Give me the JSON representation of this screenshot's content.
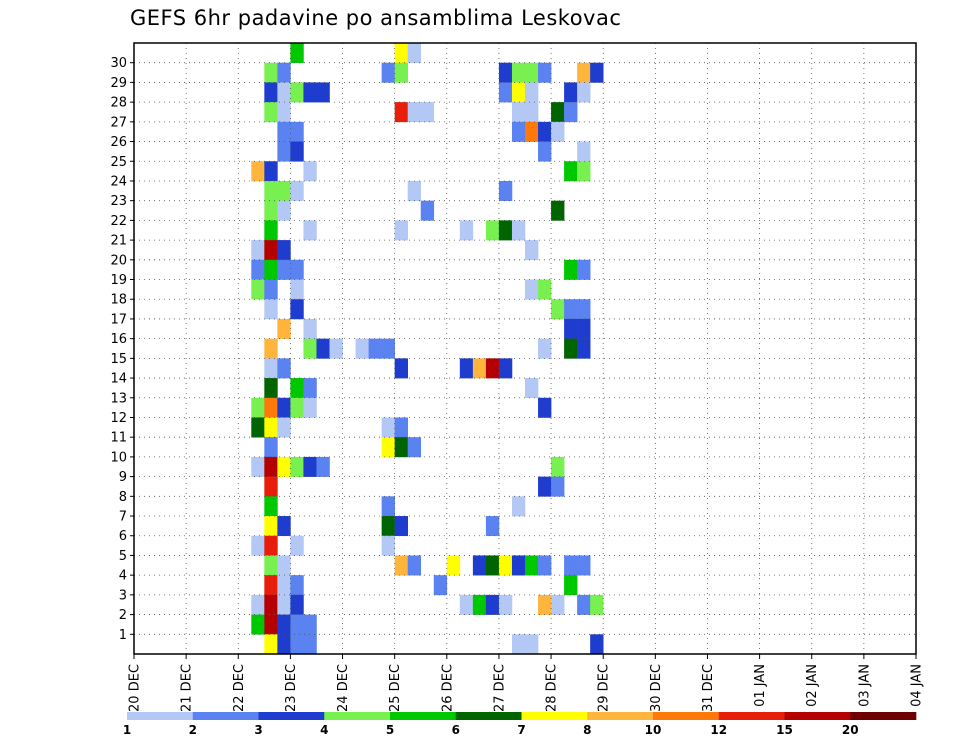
{
  "chart_data": {
    "type": "heatmap",
    "title": "GEFS 6hr padavine po ansamblima Leskovac",
    "xlabel": "",
    "ylabel": "",
    "x_tick_labels": [
      "20 DEC",
      "21 DEC",
      "22 DEC",
      "23 DEC",
      "24 DEC",
      "25 DEC",
      "26 DEC",
      "27 DEC",
      "28 DEC",
      "29 DEC",
      "30 DEC",
      "31 DEC",
      "01 JAN",
      "02 JAN",
      "03 JAN",
      "04 JAN"
    ],
    "x_start": "2015-12-20 00Z",
    "x_step_hours": 6,
    "y_tick_labels": [
      "1",
      "2",
      "3",
      "4",
      "5",
      "6",
      "7",
      "8",
      "9",
      "10",
      "11",
      "12",
      "13",
      "14",
      "15",
      "16",
      "17",
      "18",
      "19",
      "20",
      "21",
      "22",
      "23",
      "24",
      "25",
      "26",
      "27",
      "28",
      "29",
      "30"
    ],
    "ylim": [
      0,
      30
    ],
    "grid": true,
    "legend": {
      "position": "bottom",
      "labels": [
        "1",
        "2",
        "3",
        "4",
        "5",
        "6",
        "7",
        "8",
        "10",
        "12",
        "15",
        "20"
      ],
      "colors": [
        "#b4c8f5",
        "#5a82f0",
        "#1e3ccd",
        "#78f050",
        "#00c800",
        "#006400",
        "#ffff00",
        "#ffb43c",
        "#ff780a",
        "#e61e0a",
        "#b40000",
        "#6e0000"
      ]
    },
    "cells": [
      {
        "x": 12,
        "y": 31,
        "v": 5
      },
      {
        "x": 20,
        "y": 31,
        "v": 7
      },
      {
        "x": 21,
        "y": 31,
        "v": 1
      },
      {
        "x": 10,
        "y": 30,
        "v": 4
      },
      {
        "x": 11,
        "y": 30,
        "v": 2
      },
      {
        "x": 19,
        "y": 30,
        "v": 2
      },
      {
        "x": 20,
        "y": 30,
        "v": 4
      },
      {
        "x": 28,
        "y": 30,
        "v": 3
      },
      {
        "x": 29,
        "y": 30,
        "v": 4
      },
      {
        "x": 30,
        "y": 30,
        "v": 4
      },
      {
        "x": 31,
        "y": 30,
        "v": 2
      },
      {
        "x": 34,
        "y": 30,
        "v": 8
      },
      {
        "x": 35,
        "y": 30,
        "v": 3
      },
      {
        "x": 10,
        "y": 29,
        "v": 3
      },
      {
        "x": 11,
        "y": 29,
        "v": 1
      },
      {
        "x": 12,
        "y": 29,
        "v": 4
      },
      {
        "x": 13,
        "y": 29,
        "v": 3
      },
      {
        "x": 14,
        "y": 29,
        "v": 3
      },
      {
        "x": 28,
        "y": 29,
        "v": 2
      },
      {
        "x": 29,
        "y": 29,
        "v": 7
      },
      {
        "x": 30,
        "y": 29,
        "v": 1
      },
      {
        "x": 33,
        "y": 29,
        "v": 3
      },
      {
        "x": 34,
        "y": 29,
        "v": 1
      },
      {
        "x": 10,
        "y": 28,
        "v": 4
      },
      {
        "x": 11,
        "y": 28,
        "v": 1
      },
      {
        "x": 20,
        "y": 28,
        "v": 12
      },
      {
        "x": 21,
        "y": 28,
        "v": 1
      },
      {
        "x": 22,
        "y": 28,
        "v": 1
      },
      {
        "x": 29,
        "y": 28,
        "v": 1
      },
      {
        "x": 30,
        "y": 28,
        "v": 1
      },
      {
        "x": 32,
        "y": 28,
        "v": 6
      },
      {
        "x": 33,
        "y": 28,
        "v": 2
      },
      {
        "x": 11,
        "y": 27,
        "v": 2
      },
      {
        "x": 12,
        "y": 27,
        "v": 2
      },
      {
        "x": 29,
        "y": 27,
        "v": 2
      },
      {
        "x": 30,
        "y": 27,
        "v": 10
      },
      {
        "x": 31,
        "y": 27,
        "v": 3
      },
      {
        "x": 32,
        "y": 27,
        "v": 1
      },
      {
        "x": 11,
        "y": 26,
        "v": 2
      },
      {
        "x": 12,
        "y": 26,
        "v": 3
      },
      {
        "x": 31,
        "y": 26,
        "v": 2
      },
      {
        "x": 34,
        "y": 26,
        "v": 1
      },
      {
        "x": 9,
        "y": 25,
        "v": 8
      },
      {
        "x": 10,
        "y": 25,
        "v": 3
      },
      {
        "x": 13,
        "y": 25,
        "v": 1
      },
      {
        "x": 33,
        "y": 25,
        "v": 5
      },
      {
        "x": 34,
        "y": 25,
        "v": 4
      },
      {
        "x": 10,
        "y": 24,
        "v": 4
      },
      {
        "x": 11,
        "y": 24,
        "v": 4
      },
      {
        "x": 12,
        "y": 24,
        "v": 1
      },
      {
        "x": 21,
        "y": 24,
        "v": 1
      },
      {
        "x": 28,
        "y": 24,
        "v": 2
      },
      {
        "x": 10,
        "y": 23,
        "v": 4
      },
      {
        "x": 11,
        "y": 23,
        "v": 1
      },
      {
        "x": 22,
        "y": 23,
        "v": 2
      },
      {
        "x": 32,
        "y": 23,
        "v": 6
      },
      {
        "x": 10,
        "y": 22,
        "v": 5
      },
      {
        "x": 13,
        "y": 22,
        "v": 1
      },
      {
        "x": 20,
        "y": 22,
        "v": 1
      },
      {
        "x": 25,
        "y": 22,
        "v": 1
      },
      {
        "x": 27,
        "y": 22,
        "v": 4
      },
      {
        "x": 28,
        "y": 22,
        "v": 6
      },
      {
        "x": 29,
        "y": 22,
        "v": 1
      },
      {
        "x": 9,
        "y": 21,
        "v": 1
      },
      {
        "x": 10,
        "y": 21,
        "v": 15
      },
      {
        "x": 11,
        "y": 21,
        "v": 3
      },
      {
        "x": 30,
        "y": 21,
        "v": 1
      },
      {
        "x": 9,
        "y": 20,
        "v": 2
      },
      {
        "x": 10,
        "y": 20,
        "v": 5
      },
      {
        "x": 11,
        "y": 20,
        "v": 2
      },
      {
        "x": 12,
        "y": 20,
        "v": 2
      },
      {
        "x": 33,
        "y": 20,
        "v": 5
      },
      {
        "x": 34,
        "y": 20,
        "v": 2
      },
      {
        "x": 9,
        "y": 19,
        "v": 4
      },
      {
        "x": 10,
        "y": 19,
        "v": 2
      },
      {
        "x": 12,
        "y": 19,
        "v": 1
      },
      {
        "x": 30,
        "y": 19,
        "v": 1
      },
      {
        "x": 31,
        "y": 19,
        "v": 4
      },
      {
        "x": 10,
        "y": 18,
        "v": 1
      },
      {
        "x": 12,
        "y": 18,
        "v": 3
      },
      {
        "x": 32,
        "y": 18,
        "v": 4
      },
      {
        "x": 33,
        "y": 18,
        "v": 2
      },
      {
        "x": 34,
        "y": 18,
        "v": 2
      },
      {
        "x": 11,
        "y": 17,
        "v": 8
      },
      {
        "x": 13,
        "y": 17,
        "v": 1
      },
      {
        "x": 33,
        "y": 17,
        "v": 3
      },
      {
        "x": 34,
        "y": 17,
        "v": 3
      },
      {
        "x": 10,
        "y": 16,
        "v": 8
      },
      {
        "x": 13,
        "y": 16,
        "v": 4
      },
      {
        "x": 14,
        "y": 16,
        "v": 3
      },
      {
        "x": 15,
        "y": 16,
        "v": 1
      },
      {
        "x": 17,
        "y": 16,
        "v": 1
      },
      {
        "x": 18,
        "y": 16,
        "v": 2
      },
      {
        "x": 19,
        "y": 16,
        "v": 2
      },
      {
        "x": 31,
        "y": 16,
        "v": 1
      },
      {
        "x": 33,
        "y": 16,
        "v": 6
      },
      {
        "x": 34,
        "y": 16,
        "v": 3
      },
      {
        "x": 10,
        "y": 15,
        "v": 1
      },
      {
        "x": 11,
        "y": 15,
        "v": 2
      },
      {
        "x": 20,
        "y": 15,
        "v": 3
      },
      {
        "x": 25,
        "y": 15,
        "v": 3
      },
      {
        "x": 26,
        "y": 15,
        "v": 8
      },
      {
        "x": 27,
        "y": 15,
        "v": 15
      },
      {
        "x": 28,
        "y": 15,
        "v": 3
      },
      {
        "x": 10,
        "y": 14,
        "v": 6
      },
      {
        "x": 12,
        "y": 14,
        "v": 5
      },
      {
        "x": 13,
        "y": 14,
        "v": 2
      },
      {
        "x": 30,
        "y": 14,
        "v": 1
      },
      {
        "x": 9,
        "y": 13,
        "v": 4
      },
      {
        "x": 10,
        "y": 13,
        "v": 10
      },
      {
        "x": 11,
        "y": 13,
        "v": 3
      },
      {
        "x": 12,
        "y": 13,
        "v": 4
      },
      {
        "x": 13,
        "y": 13,
        "v": 1
      },
      {
        "x": 31,
        "y": 13,
        "v": 3
      },
      {
        "x": 9,
        "y": 12,
        "v": 6
      },
      {
        "x": 10,
        "y": 12,
        "v": 7
      },
      {
        "x": 11,
        "y": 12,
        "v": 1
      },
      {
        "x": 19,
        "y": 12,
        "v": 1
      },
      {
        "x": 20,
        "y": 12,
        "v": 2
      },
      {
        "x": 19,
        "y": 11,
        "v": 7
      },
      {
        "x": 20,
        "y": 11,
        "v": 6
      },
      {
        "x": 21,
        "y": 11,
        "v": 2
      },
      {
        "x": 10,
        "y": 11,
        "v": 2
      },
      {
        "x": 9,
        "y": 10,
        "v": 1
      },
      {
        "x": 10,
        "y": 10,
        "v": 15
      },
      {
        "x": 11,
        "y": 10,
        "v": 7
      },
      {
        "x": 12,
        "y": 10,
        "v": 4
      },
      {
        "x": 13,
        "y": 10,
        "v": 3
      },
      {
        "x": 14,
        "y": 10,
        "v": 2
      },
      {
        "x": 32,
        "y": 10,
        "v": 4
      },
      {
        "x": 10,
        "y": 9,
        "v": 12
      },
      {
        "x": 31,
        "y": 9,
        "v": 3
      },
      {
        "x": 32,
        "y": 9,
        "v": 2
      },
      {
        "x": 10,
        "y": 8,
        "v": 5
      },
      {
        "x": 19,
        "y": 8,
        "v": 2
      },
      {
        "x": 29,
        "y": 8,
        "v": 1
      },
      {
        "x": 10,
        "y": 7,
        "v": 7
      },
      {
        "x": 11,
        "y": 7,
        "v": 3
      },
      {
        "x": 19,
        "y": 7,
        "v": 6
      },
      {
        "x": 20,
        "y": 7,
        "v": 3
      },
      {
        "x": 27,
        "y": 7,
        "v": 2
      },
      {
        "x": 9,
        "y": 6,
        "v": 1
      },
      {
        "x": 10,
        "y": 6,
        "v": 12
      },
      {
        "x": 12,
        "y": 6,
        "v": 1
      },
      {
        "x": 19,
        "y": 6,
        "v": 1
      },
      {
        "x": 10,
        "y": 5,
        "v": 4
      },
      {
        "x": 11,
        "y": 5,
        "v": 1
      },
      {
        "x": 20,
        "y": 5,
        "v": 8
      },
      {
        "x": 21,
        "y": 5,
        "v": 2
      },
      {
        "x": 24,
        "y": 5,
        "v": 7
      },
      {
        "x": 26,
        "y": 5,
        "v": 3
      },
      {
        "x": 27,
        "y": 5,
        "v": 6
      },
      {
        "x": 28,
        "y": 5,
        "v": 7
      },
      {
        "x": 29,
        "y": 5,
        "v": 3
      },
      {
        "x": 30,
        "y": 5,
        "v": 5
      },
      {
        "x": 31,
        "y": 5,
        "v": 2
      },
      {
        "x": 33,
        "y": 5,
        "v": 2
      },
      {
        "x": 34,
        "y": 5,
        "v": 2
      },
      {
        "x": 10,
        "y": 4,
        "v": 12
      },
      {
        "x": 11,
        "y": 4,
        "v": 1
      },
      {
        "x": 12,
        "y": 4,
        "v": 2
      },
      {
        "x": 23,
        "y": 4,
        "v": 2
      },
      {
        "x": 33,
        "y": 4,
        "v": 5
      },
      {
        "x": 9,
        "y": 3,
        "v": 1
      },
      {
        "x": 10,
        "y": 3,
        "v": 15
      },
      {
        "x": 11,
        "y": 3,
        "v": 1
      },
      {
        "x": 12,
        "y": 3,
        "v": 3
      },
      {
        "x": 25,
        "y": 3,
        "v": 1
      },
      {
        "x": 26,
        "y": 3,
        "v": 5
      },
      {
        "x": 27,
        "y": 3,
        "v": 3
      },
      {
        "x": 28,
        "y": 3,
        "v": 1
      },
      {
        "x": 31,
        "y": 3,
        "v": 8
      },
      {
        "x": 32,
        "y": 3,
        "v": 1
      },
      {
        "x": 34,
        "y": 3,
        "v": 2
      },
      {
        "x": 35,
        "y": 3,
        "v": 4
      },
      {
        "x": 9,
        "y": 2,
        "v": 5
      },
      {
        "x": 10,
        "y": 2,
        "v": 15
      },
      {
        "x": 11,
        "y": 2,
        "v": 3
      },
      {
        "x": 12,
        "y": 2,
        "v": 2
      },
      {
        "x": 13,
        "y": 2,
        "v": 2
      },
      {
        "x": 10,
        "y": 1,
        "v": 7
      },
      {
        "x": 11,
        "y": 1,
        "v": 3
      },
      {
        "x": 12,
        "y": 1,
        "v": 2
      },
      {
        "x": 13,
        "y": 1,
        "v": 2
      },
      {
        "x": 29,
        "y": 1,
        "v": 1
      },
      {
        "x": 30,
        "y": 1,
        "v": 1
      },
      {
        "x": 35,
        "y": 1,
        "v": 3
      }
    ]
  }
}
